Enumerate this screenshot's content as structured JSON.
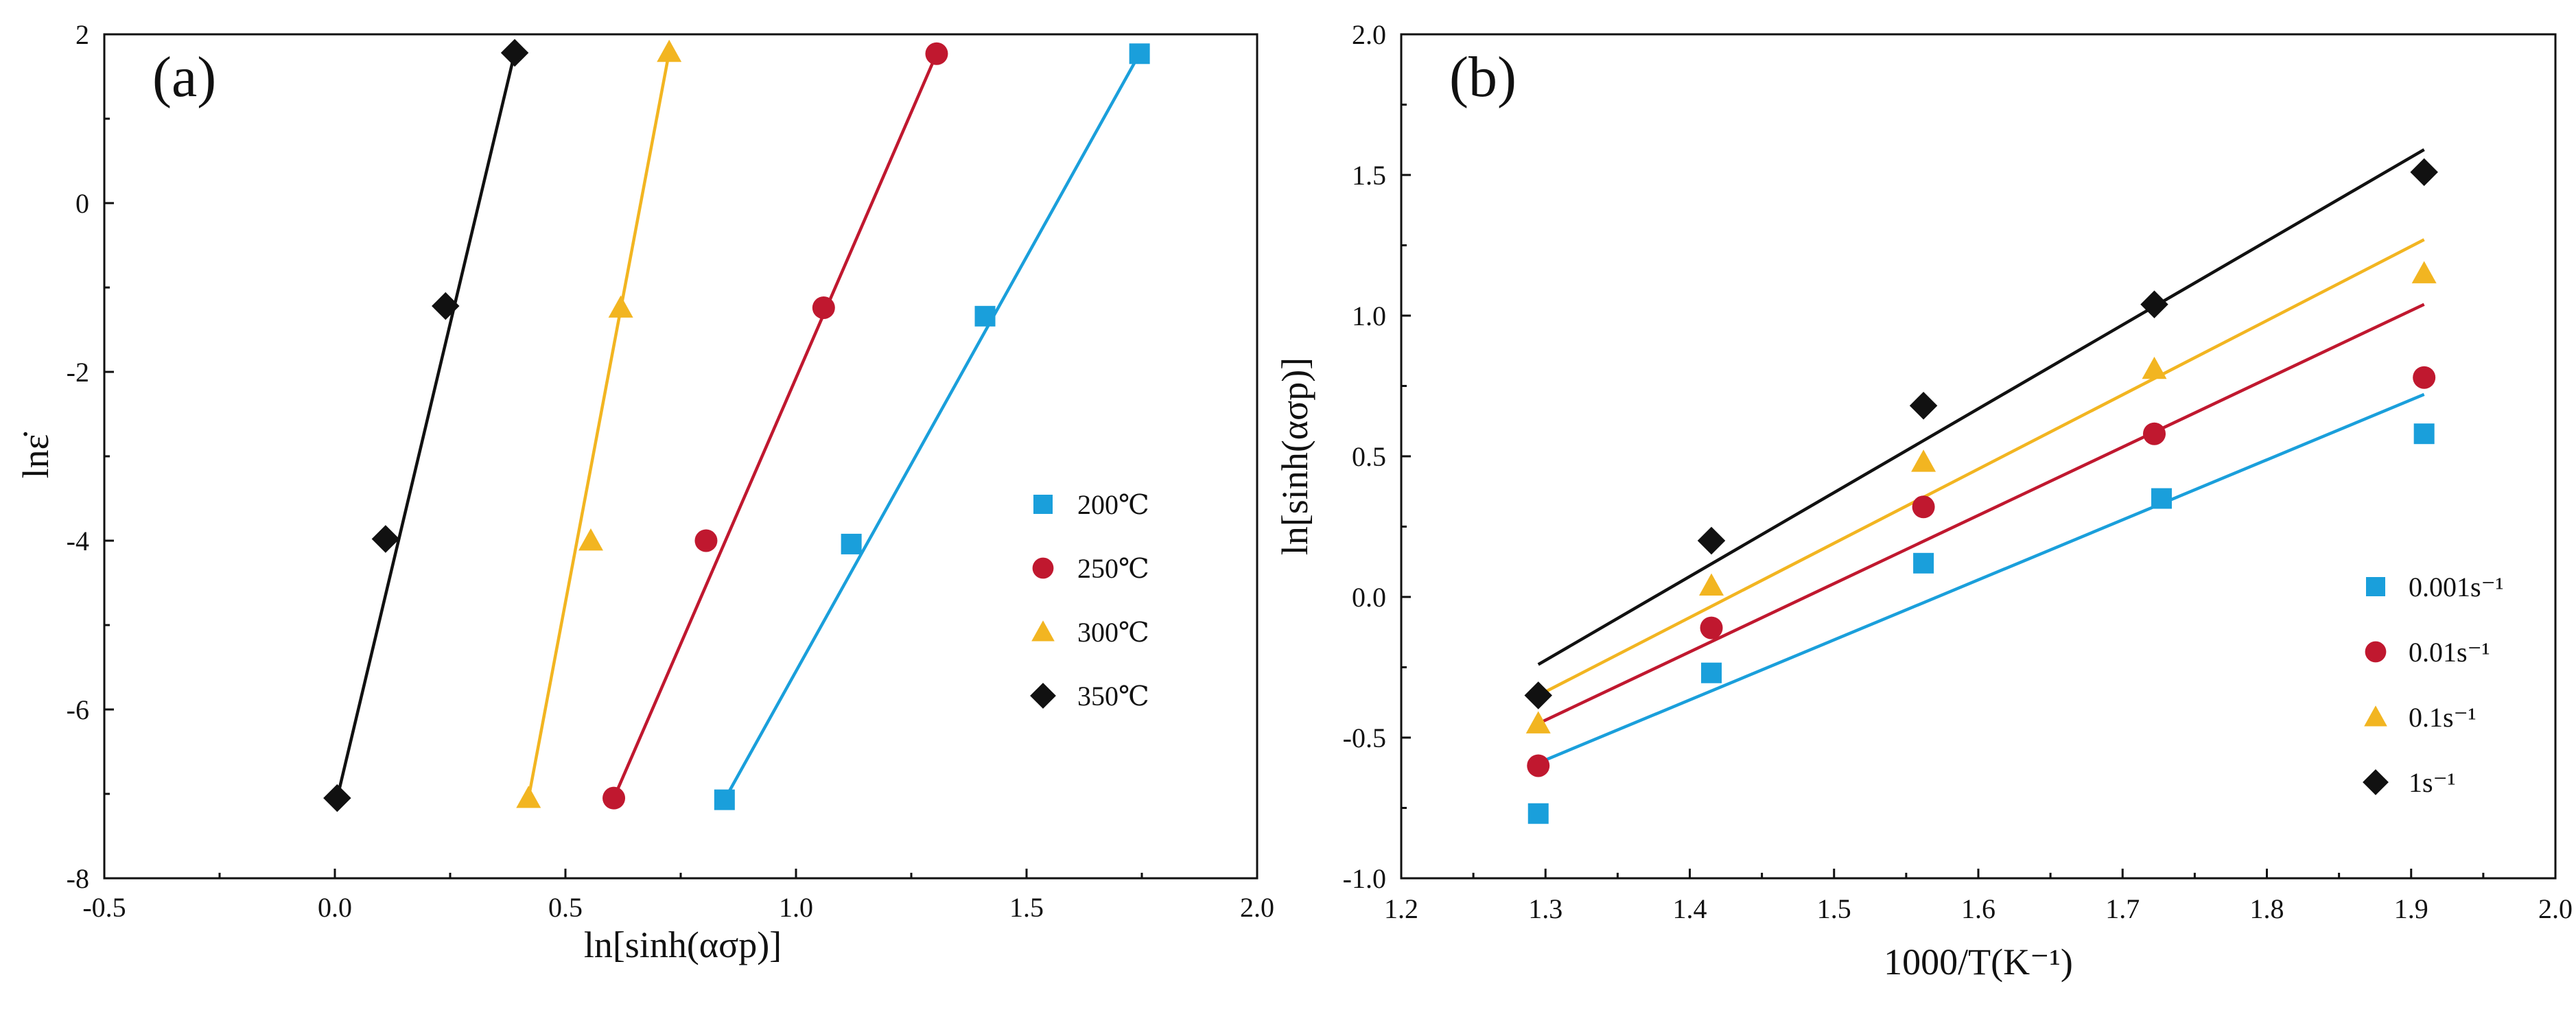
{
  "chart_data": [
    {
      "type": "scatter",
      "panel_label": "(a)",
      "xlabel": "ln[sinh(ασp)]",
      "ylabel": "lnε̇",
      "xlim": [
        -0.5,
        2.0
      ],
      "ylim": [
        -8,
        2
      ],
      "x_major_ticks": [
        -0.5,
        0.0,
        0.5,
        1.0,
        1.5,
        2.0
      ],
      "x_tick_labels": [
        "-0.5",
        "0.0",
        "0.5",
        "1.0",
        "1.5",
        "2.0"
      ],
      "y_major_ticks": [
        -8,
        -6,
        -4,
        -2,
        0,
        2
      ],
      "y_tick_labels": [
        "-8",
        "-6",
        "-4",
        "-2",
        "0",
        "2"
      ],
      "grid": false,
      "legend_position": "right-middle",
      "series": [
        {
          "name": "200℃",
          "marker": "square",
          "color": "#1a9fdb",
          "x": [
            0.845,
            1.12,
            1.41,
            1.745
          ],
          "y": [
            -7.07,
            -4.04,
            -1.34,
            1.77
          ],
          "fit_line": [
            [
              0.845,
              -7.07
            ],
            [
              1.745,
              1.77
            ]
          ]
        },
        {
          "name": "250℃",
          "marker": "circle",
          "color": "#c0182f",
          "x": [
            0.605,
            0.805,
            1.06,
            1.305
          ],
          "y": [
            -7.05,
            -4.0,
            -1.24,
            1.77
          ],
          "fit_line": [
            [
              0.605,
              -7.05
            ],
            [
              1.305,
              1.77
            ]
          ]
        },
        {
          "name": "300℃",
          "marker": "triangle",
          "color": "#f2b521",
          "x": [
            0.42,
            0.555,
            0.62,
            0.725
          ],
          "y": [
            -7.05,
            -4.0,
            -1.24,
            1.79
          ],
          "fit_line": [
            [
              0.42,
              -7.05
            ],
            [
              0.725,
              1.79
            ]
          ]
        },
        {
          "name": "350℃",
          "marker": "diamond",
          "color": "#111111",
          "x": [
            0.005,
            0.11,
            0.24,
            0.39
          ],
          "y": [
            -7.05,
            -3.98,
            -1.22,
            1.78
          ],
          "fit_line": [
            [
              0.005,
              -7.05
            ],
            [
              0.39,
              1.78
            ]
          ]
        }
      ]
    },
    {
      "type": "scatter",
      "panel_label": "(b)",
      "xlabel": "1000/T(K⁻¹)",
      "ylabel": "ln[sinh(ασp)]",
      "xlim": [
        1.2,
        2.0
      ],
      "ylim": [
        -1.0,
        2.0
      ],
      "x_major_ticks": [
        1.2,
        1.3,
        1.4,
        1.5,
        1.6,
        1.7,
        1.8,
        1.9,
        2.0
      ],
      "x_tick_labels": [
        "1.2",
        "1.3",
        "1.4",
        "1.5",
        "1.6",
        "1.7",
        "1.8",
        "1.9",
        "2.0"
      ],
      "y_major_ticks": [
        -1.0,
        -0.5,
        0.0,
        0.5,
        1.0,
        1.5,
        2.0
      ],
      "y_tick_labels": [
        "-1.0",
        "-0.5",
        "0.0",
        "0.5",
        "1.0",
        "1.5",
        "2.0"
      ],
      "grid": false,
      "legend_position": "right-lower",
      "series": [
        {
          "name": "0.001s⁻¹",
          "marker": "square",
          "color": "#1a9fdb",
          "x": [
            1.295,
            1.415,
            1.562,
            1.727,
            1.909
          ],
          "y": [
            -0.77,
            -0.27,
            0.12,
            0.35,
            0.58
          ],
          "fit_line": [
            [
              1.295,
              -0.59
            ],
            [
              1.909,
              0.72
            ]
          ]
        },
        {
          "name": "0.01s⁻¹",
          "marker": "circle",
          "color": "#c0182f",
          "x": [
            1.295,
            1.415,
            1.562,
            1.722,
            1.909
          ],
          "y": [
            -0.6,
            -0.11,
            0.32,
            0.58,
            0.78
          ],
          "fit_line": [
            [
              1.295,
              -0.45
            ],
            [
              1.909,
              1.04
            ]
          ]
        },
        {
          "name": "0.1s⁻¹",
          "marker": "triangle",
          "color": "#f2b521",
          "x": [
            1.295,
            1.415,
            1.562,
            1.722,
            1.909
          ],
          "y": [
            -0.45,
            0.04,
            0.48,
            0.81,
            1.15
          ],
          "fit_line": [
            [
              1.295,
              -0.35
            ],
            [
              1.909,
              1.27
            ]
          ]
        },
        {
          "name": "1s⁻¹",
          "marker": "diamond",
          "color": "#111111",
          "x": [
            1.295,
            1.415,
            1.562,
            1.722,
            1.909
          ],
          "y": [
            -0.35,
            0.2,
            0.68,
            1.04,
            1.51
          ],
          "fit_line": [
            [
              1.295,
              -0.24
            ],
            [
              1.909,
              1.59
            ]
          ]
        }
      ]
    }
  ]
}
